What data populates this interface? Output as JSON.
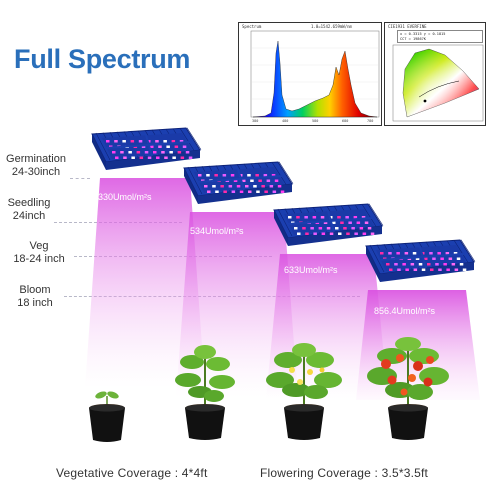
{
  "title": "Full Spectrum",
  "spectrum_panel": {
    "header_left": "Spectrum",
    "header_right": "1.0=1542.659mW/nm",
    "x_label": "Wavelength(nm)",
    "x_ticks": [
      "380",
      "480",
      "580",
      "680",
      "780"
    ]
  },
  "cie_panel": {
    "header": "CIE1931 EVERFINE",
    "coords": "x = 0.3315  y = 0.1815",
    "cct": "CCT = 19867K"
  },
  "stages": [
    {
      "name": "Germination",
      "height": "24-30inch"
    },
    {
      "name": "Seedling",
      "height": "24inch"
    },
    {
      "name": "Veg",
      "height": "18-24 inch"
    },
    {
      "name": "Bloom",
      "height": "18 inch"
    }
  ],
  "lamps": [
    {
      "ppfd": "330Umol/m²s"
    },
    {
      "ppfd": "534Umol/m²s"
    },
    {
      "ppfd": "633Umol/m²s"
    },
    {
      "ppfd": "856.4Umol/m²s"
    }
  ],
  "coverage": {
    "vegetative": "Vegetative Coverage : 4*4ft",
    "flowering": "Flowering Coverage : 3.5*3.5ft"
  },
  "colors": {
    "title": "#2a6fba",
    "lamp_body": "#1b3fb0",
    "beam": "#e14fe0"
  }
}
